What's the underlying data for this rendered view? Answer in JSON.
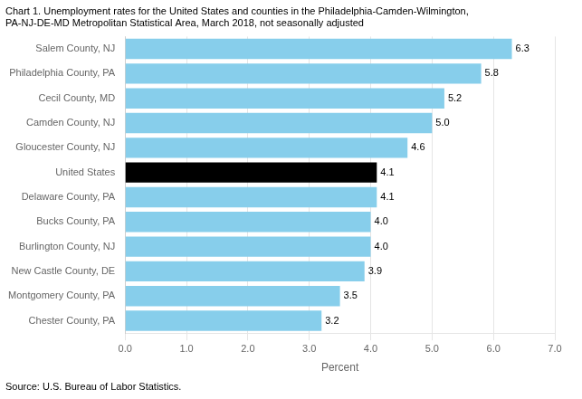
{
  "chart_data": {
    "type": "bar",
    "orientation": "horizontal",
    "title": [
      "Chart 1. Unemployment rates for the United States and counties in the Philadelphia-Camden-Wilmington,",
      "PA-NJ-DE-MD Metropolitan Statistical Area, March 2018, not seasonally adjusted"
    ],
    "annotations": [
      "Source: U.S. Bureau of Labor Statistics."
    ],
    "x_label": "Percent",
    "categories": [
      "Chester County, PA",
      "Montgomery County, PA",
      "New Castle County, DE",
      "Burlington County, NJ",
      "Bucks County, PA",
      "Delaware County, PA",
      "United States",
      "Gloucester County, NJ",
      "Camden County, NJ",
      "Cecil County, MD",
      "Philadelphia County, PA",
      "Salem County, NJ"
    ],
    "values": [
      3.2,
      3.5,
      3.9,
      4.0,
      4.0,
      4.1,
      4.1,
      4.6,
      5.0,
      5.2,
      5.8,
      6.3
    ],
    "value_labels": [
      "3.2",
      "3.5",
      "3.9",
      "4.0",
      "4.0",
      "4.1",
      "4.1",
      "4.6",
      "5.0",
      "5.2",
      "5.8",
      "6.3"
    ],
    "data_labels": true,
    "colors": [
      "#87CEEB",
      "#87CEEB",
      "#87CEEB",
      "#87CEEB",
      "#87CEEB",
      "#87CEEB",
      "#000000",
      "#87CEEB",
      "#87CEEB",
      "#87CEEB",
      "#87CEEB",
      "#87CEEB"
    ],
    "xlim": [
      0.0,
      7.0
    ],
    "xticks": [
      {
        "value": 0,
        "label": "0.0"
      },
      {
        "value": 1,
        "label": "1.0"
      },
      {
        "value": 2,
        "label": "2.0"
      },
      {
        "value": 3,
        "label": "3.0"
      },
      {
        "value": 4,
        "label": "4.0"
      },
      {
        "value": 5,
        "label": "5.0"
      },
      {
        "value": 6,
        "label": "6.0"
      },
      {
        "value": 7,
        "label": "7.0"
      }
    ],
    "grid": true
  }
}
